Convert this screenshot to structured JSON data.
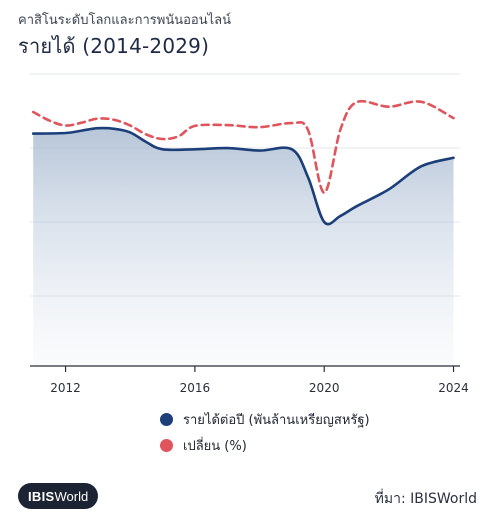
{
  "header": {
    "subtitle": "คาสิโนระดับโลกและการพนันออนไลน์",
    "title": "รายได้ (2014-2029)"
  },
  "legend": {
    "revenue_label": "รายได้ต่อปี (พันล้านเหรียญสหรัฐ)",
    "change_label": "เปลี่ยน (%)"
  },
  "footer": {
    "logo_bold": "IBIS",
    "logo_light": "World",
    "source": "ที่มา: IBISWorld"
  },
  "colors": {
    "revenue_line": "#1c3f7a",
    "change_line": "#e0545c",
    "area_top": "#9fb3cc",
    "grid": "#e3e6ec",
    "axis": "#2a2f3a"
  },
  "chart_data": {
    "type": "line",
    "x_ticks": [
      "2012",
      "2016",
      "2020",
      "2024"
    ],
    "xlim": [
      2010.9,
      2024.2
    ],
    "grid": true,
    "legend_position": "bottom",
    "series": [
      {
        "name": "รายได้ต่อปี (พันล้านเหรียญสหรัฐ)",
        "axis": "left",
        "fill": true,
        "x": [
          2011,
          2012,
          2012.5,
          2013,
          2013.5,
          2014,
          2014.5,
          2015,
          2016,
          2017,
          2018,
          2019,
          2019.5,
          2020,
          2020.5,
          2021,
          2022,
          2023,
          2024
        ],
        "values": [
          73,
          73.5,
          75.5,
          77.5,
          77,
          74,
          66,
          60,
          60,
          61,
          59,
          60,
          37,
          0,
          5,
          13,
          27,
          46,
          53
        ]
      },
      {
        "name": "เปลี่ยน (%)",
        "axis": "right",
        "dashed": true,
        "x": [
          2011,
          2011.5,
          2012,
          2012.5,
          2013,
          2013.5,
          2014,
          2014.5,
          2015,
          2015.5,
          2016,
          2017,
          2018,
          2019,
          2019.5,
          2020,
          2020.5,
          2021,
          2022,
          2023,
          2024
        ],
        "values": [
          83,
          62,
          50,
          57,
          67,
          64,
          50,
          28,
          17,
          24,
          49,
          51,
          46,
          56,
          39,
          -114,
          40,
          107,
          96,
          108,
          68
        ]
      }
    ]
  }
}
